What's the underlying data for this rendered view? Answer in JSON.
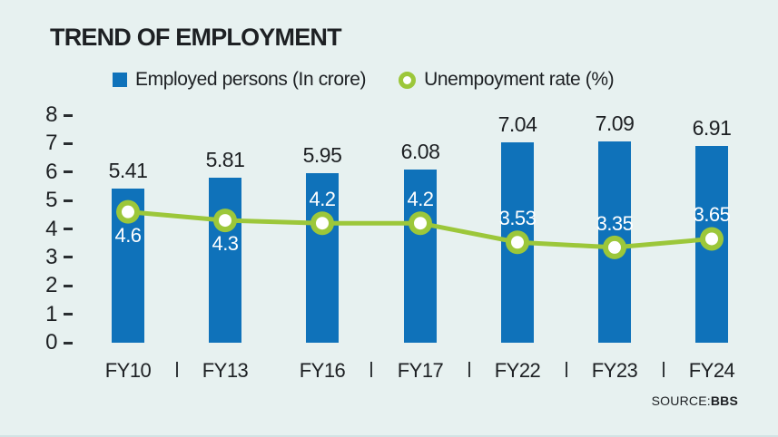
{
  "title": "TREND OF EMPLOYMENT",
  "source": {
    "prefix": "SOURCE:",
    "name": "BBS"
  },
  "colors": {
    "background": "#e7f1f0",
    "bar": "#0f72ba",
    "line": "#9cc73a",
    "marker_center": "#ffffff",
    "text": "#1d2023",
    "rate_label": "#ffffff"
  },
  "legend": [
    {
      "label": "Employed persons (In crore)",
      "marker": "square",
      "color": "#0f72ba"
    },
    {
      "label": "Unempoyment rate (%)",
      "marker": "ring",
      "color": "#9cc73a"
    }
  ],
  "chart_data": {
    "type": "bar",
    "subtype": "bar-line-combo",
    "categories": [
      "FY10",
      "FY13",
      "FY16",
      "FY17",
      "FY22",
      "FY23",
      "FY24"
    ],
    "series": [
      {
        "name": "Employed persons (In crore)",
        "type": "bar",
        "values": [
          5.41,
          5.81,
          5.95,
          6.08,
          7.04,
          7.09,
          6.91
        ],
        "value_labels": [
          "5.41",
          "5.81",
          "5.95",
          "6.08",
          "7.04",
          "7.09",
          "6.91"
        ]
      },
      {
        "name": "Unempoyment rate (%)",
        "type": "line",
        "values": [
          4.6,
          4.3,
          4.2,
          4.2,
          3.53,
          3.35,
          3.65
        ],
        "value_labels": [
          "4.6",
          "4.3",
          "4.2",
          "4.2",
          "3.53",
          "3.35",
          "3.65"
        ],
        "label_positions": [
          "below",
          "below",
          "above",
          "above",
          "above",
          "above",
          "above"
        ]
      }
    ],
    "ylim": [
      0,
      8
    ],
    "yticks": [
      0,
      1,
      2,
      3,
      4,
      5,
      6,
      7,
      8
    ],
    "grid": false,
    "legend_position": "top",
    "x_separators_between": [
      true,
      false,
      true,
      true,
      true,
      true
    ]
  }
}
